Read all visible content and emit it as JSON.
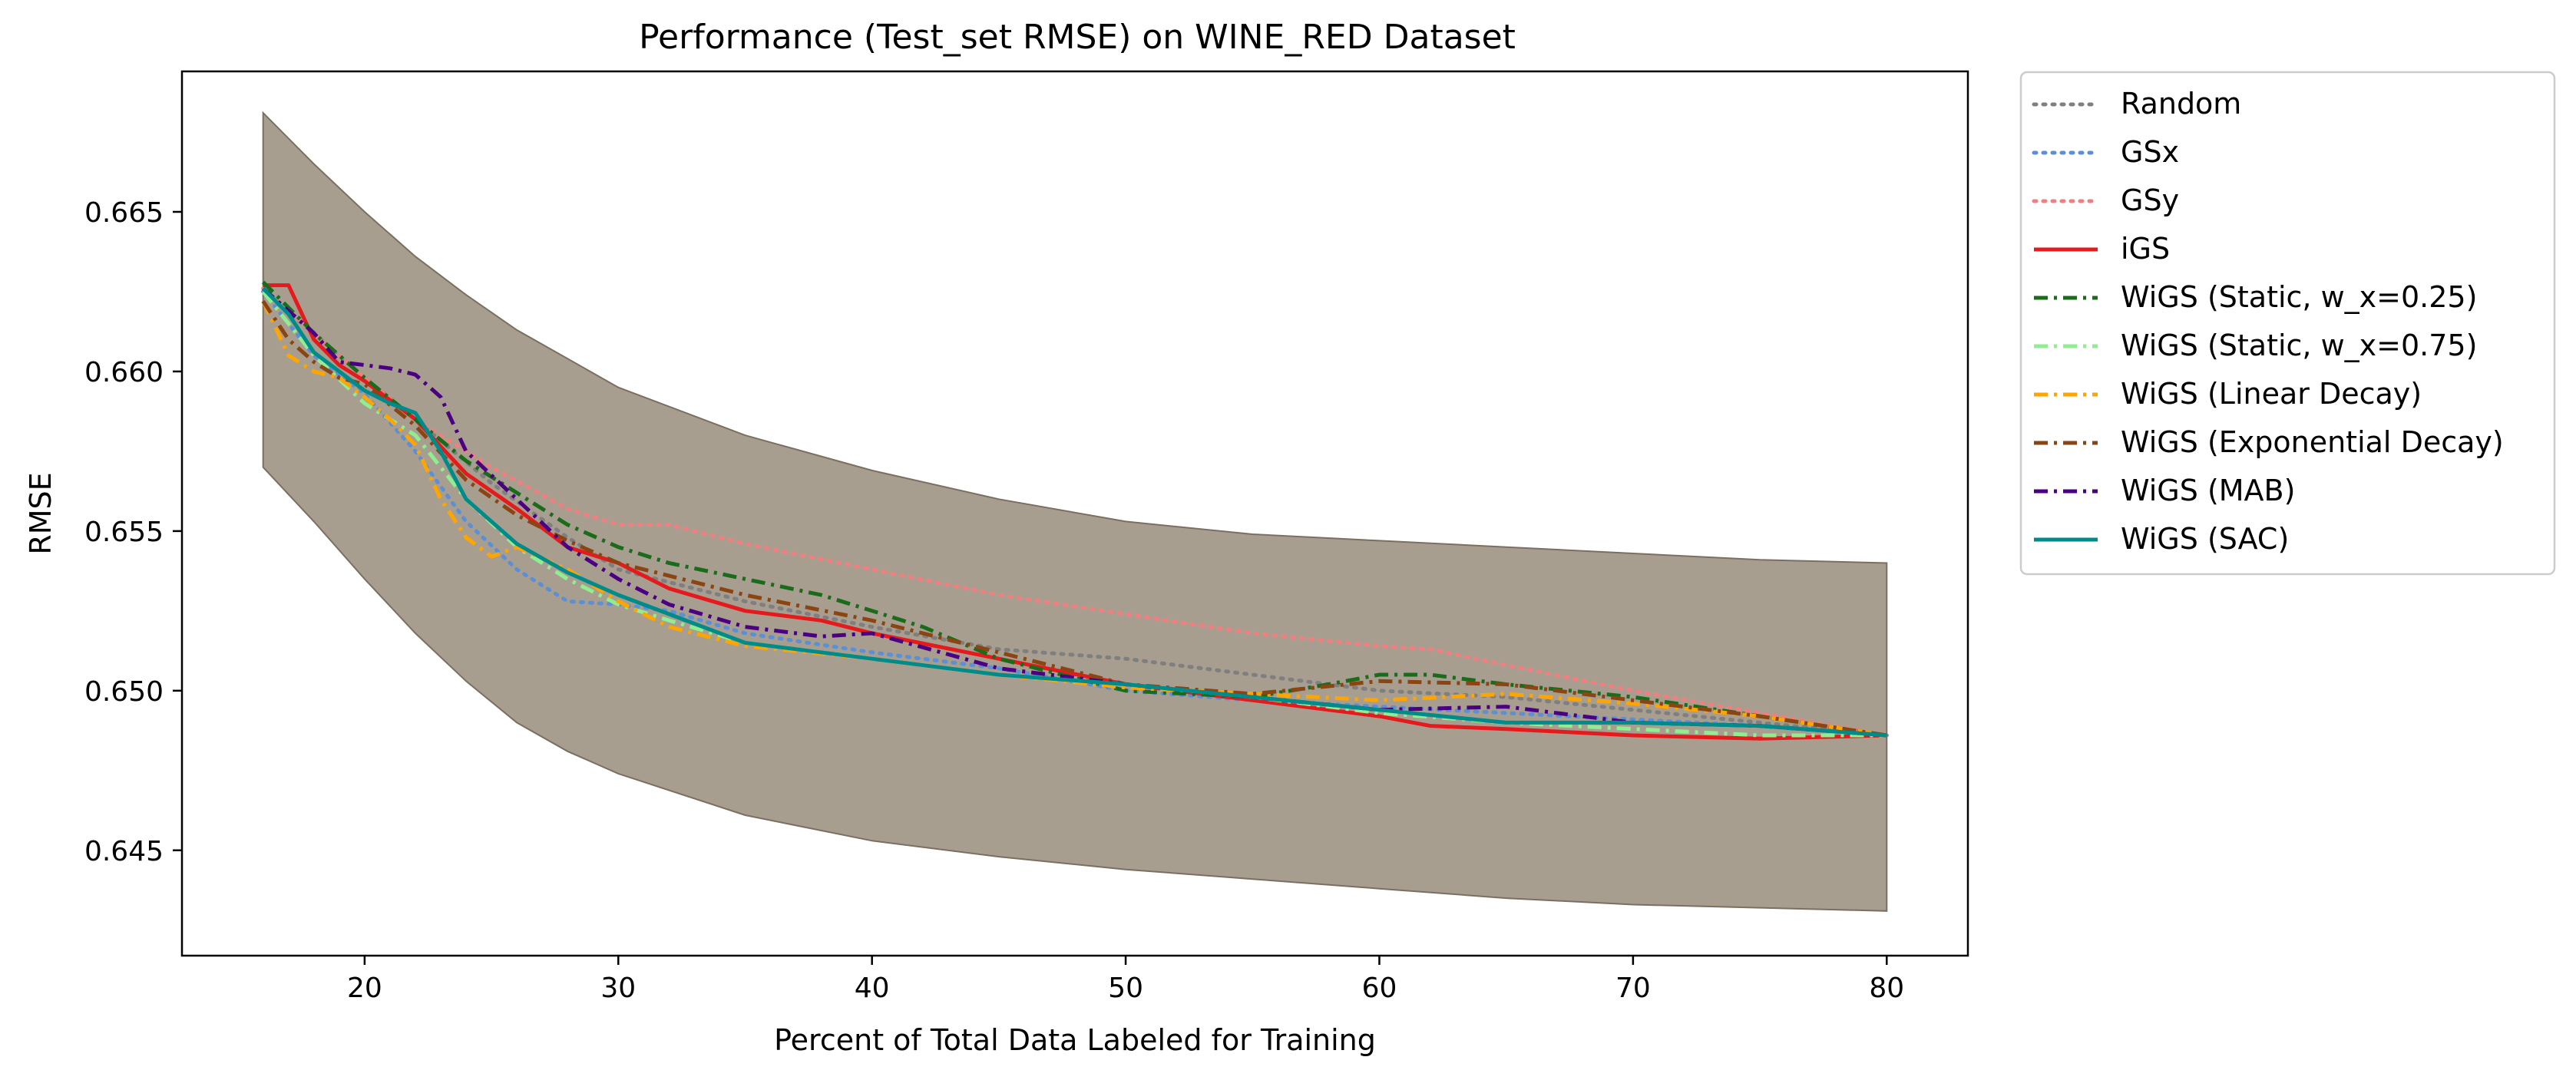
{
  "chart_data": {
    "type": "line",
    "title": "Performance (Test_set RMSE) on WINE_RED Dataset",
    "xlabel": "Percent of Total Data Labeled for Training",
    "ylabel": "RMSE",
    "xlim": [
      12.8,
      83.2
    ],
    "ylim": [
      0.6417,
      0.6694
    ],
    "xticks": [
      20,
      30,
      40,
      50,
      60,
      70,
      80
    ],
    "xtick_labels": [
      "20",
      "30",
      "40",
      "50",
      "60",
      "70",
      "80"
    ],
    "yticks": [
      0.645,
      0.65,
      0.655,
      0.66,
      0.665
    ],
    "ytick_labels": [
      "0.645",
      "0.650",
      "0.655",
      "0.660",
      "0.665"
    ],
    "grid": false,
    "legend_position": "outside-right",
    "confidence_band": {
      "color": "#9e9384",
      "x": [
        16,
        18,
        20,
        22,
        24,
        26,
        28,
        30,
        35,
        40,
        45,
        50,
        55,
        60,
        65,
        70,
        75,
        80
      ],
      "upper": [
        0.6681,
        0.6665,
        0.665,
        0.6636,
        0.6624,
        0.6613,
        0.6604,
        0.6595,
        0.658,
        0.6569,
        0.656,
        0.6553,
        0.6549,
        0.6547,
        0.6545,
        0.6543,
        0.6541,
        0.654
      ],
      "lower": [
        0.657,
        0.6553,
        0.6535,
        0.6518,
        0.6503,
        0.649,
        0.6481,
        0.6474,
        0.6461,
        0.6453,
        0.6448,
        0.6444,
        0.6441,
        0.6438,
        0.6435,
        0.6433,
        0.6432,
        0.6431
      ]
    },
    "series": [
      {
        "name": "Random",
        "color": "#7f7f7f",
        "dash": "dotted",
        "x": [
          16,
          18,
          20,
          22,
          25,
          28,
          30,
          35,
          40,
          45,
          50,
          55,
          60,
          65,
          70,
          75,
          80
        ],
        "y": [
          0.6625,
          0.6612,
          0.6598,
          0.6585,
          0.6565,
          0.6548,
          0.6538,
          0.6528,
          0.652,
          0.6513,
          0.651,
          0.6505,
          0.65,
          0.6498,
          0.6494,
          0.649,
          0.6486
        ]
      },
      {
        "name": "GSx",
        "color": "#5b8fd6",
        "dash": "dotted",
        "x": [
          16,
          18,
          20,
          22,
          24,
          26,
          28,
          30,
          32,
          35,
          40,
          45,
          50,
          55,
          60,
          65,
          70,
          75,
          80
        ],
        "y": [
          0.6625,
          0.6605,
          0.6593,
          0.6575,
          0.6553,
          0.6538,
          0.6528,
          0.6527,
          0.6525,
          0.6518,
          0.6512,
          0.6507,
          0.65,
          0.6497,
          0.6495,
          0.6493,
          0.6491,
          0.6489,
          0.6486
        ]
      },
      {
        "name": "GSy",
        "color": "#f08080",
        "dash": "dotted",
        "x": [
          16,
          18,
          20,
          22,
          25,
          28,
          30,
          32,
          35,
          40,
          45,
          50,
          55,
          60,
          62,
          65,
          70,
          75,
          80
        ],
        "y": [
          0.6626,
          0.6612,
          0.6598,
          0.6585,
          0.657,
          0.6557,
          0.6552,
          0.6552,
          0.6546,
          0.6538,
          0.653,
          0.6524,
          0.6518,
          0.6514,
          0.6513,
          0.6508,
          0.65,
          0.6493,
          0.6486
        ]
      },
      {
        "name": "iGS",
        "color": "#e41a1c",
        "dash": "solid",
        "x": [
          16,
          17,
          18,
          19,
          20,
          22,
          24,
          26,
          28,
          30,
          32,
          35,
          38,
          40,
          45,
          50,
          55,
          60,
          62,
          65,
          70,
          75,
          80
        ],
        "y": [
          0.6627,
          0.6627,
          0.661,
          0.6602,
          0.6597,
          0.6585,
          0.6568,
          0.6557,
          0.6545,
          0.654,
          0.6532,
          0.6525,
          0.6522,
          0.6518,
          0.651,
          0.6502,
          0.6497,
          0.6492,
          0.6489,
          0.6488,
          0.6486,
          0.6485,
          0.6486
        ]
      },
      {
        "name": "WiGS (Static, w_x=0.25)",
        "color": "#1a6b1a",
        "dash": "dashdot",
        "x": [
          16,
          18,
          20,
          22,
          24,
          26,
          28,
          30,
          32,
          35,
          38,
          40,
          42,
          45,
          50,
          55,
          58,
          60,
          62,
          65,
          70,
          75,
          80
        ],
        "y": [
          0.6628,
          0.6612,
          0.6598,
          0.6585,
          0.6572,
          0.6562,
          0.6552,
          0.6545,
          0.654,
          0.6535,
          0.653,
          0.6525,
          0.652,
          0.651,
          0.65,
          0.6498,
          0.6502,
          0.6505,
          0.6505,
          0.6502,
          0.6498,
          0.6492,
          0.6486
        ]
      },
      {
        "name": "WiGS (Static, w_x=0.75)",
        "color": "#90ee90",
        "dash": "dashdot",
        "x": [
          16,
          18,
          20,
          22,
          24,
          26,
          28,
          30,
          32,
          35,
          40,
          45,
          50,
          55,
          60,
          65,
          70,
          75,
          80
        ],
        "y": [
          0.6625,
          0.6605,
          0.659,
          0.658,
          0.656,
          0.6545,
          0.6535,
          0.6527,
          0.6522,
          0.6515,
          0.651,
          0.6505,
          0.6502,
          0.6498,
          0.6493,
          0.649,
          0.6488,
          0.6486,
          0.6486
        ]
      },
      {
        "name": "WiGS (Linear Decay)",
        "color": "#ffa500",
        "dash": "dashdot",
        "x": [
          16,
          17,
          18,
          19,
          20,
          21,
          22,
          23,
          24,
          25,
          26,
          28,
          30,
          32,
          35,
          40,
          45,
          50,
          55,
          60,
          65,
          70,
          75,
          80
        ],
        "y": [
          0.6622,
          0.6605,
          0.66,
          0.6598,
          0.6592,
          0.6585,
          0.6577,
          0.656,
          0.6548,
          0.6542,
          0.6545,
          0.6538,
          0.6528,
          0.652,
          0.6514,
          0.651,
          0.6505,
          0.6501,
          0.6499,
          0.6497,
          0.6499,
          0.6496,
          0.6492,
          0.6486
        ]
      },
      {
        "name": "WiGS (Exponential Decay)",
        "color": "#8b4513",
        "dash": "dashdot",
        "x": [
          16,
          17,
          18,
          19,
          20,
          22,
          24,
          26,
          28,
          30,
          32,
          35,
          40,
          45,
          50,
          55,
          60,
          65,
          70,
          75,
          80
        ],
        "y": [
          0.6622,
          0.661,
          0.6603,
          0.6598,
          0.6596,
          0.6583,
          0.6566,
          0.6555,
          0.6547,
          0.654,
          0.6536,
          0.653,
          0.6522,
          0.6512,
          0.6502,
          0.6499,
          0.6503,
          0.6502,
          0.6497,
          0.6492,
          0.6486
        ]
      },
      {
        "name": "WiGS (MAB)",
        "color": "#4b0082",
        "dash": "dashdot",
        "x": [
          16,
          18,
          19,
          20,
          21,
          22,
          23,
          24,
          26,
          28,
          30,
          32,
          35,
          38,
          40,
          45,
          50,
          55,
          60,
          65,
          70,
          75,
          80
        ],
        "y": [
          0.6626,
          0.6612,
          0.6603,
          0.6602,
          0.6601,
          0.6599,
          0.6592,
          0.6575,
          0.656,
          0.6545,
          0.6535,
          0.6527,
          0.652,
          0.6517,
          0.6518,
          0.6507,
          0.6502,
          0.6498,
          0.6494,
          0.6495,
          0.649,
          0.6489,
          0.6486
        ]
      },
      {
        "name": "WiGS (SAC)",
        "color": "#008b8b",
        "dash": "solid",
        "x": [
          16,
          17,
          18,
          19,
          20,
          21,
          22,
          23,
          24,
          26,
          28,
          30,
          32,
          35,
          40,
          45,
          50,
          55,
          60,
          65,
          70,
          75,
          80
        ],
        "y": [
          0.6626,
          0.6618,
          0.6606,
          0.66,
          0.6594,
          0.659,
          0.6587,
          0.6575,
          0.656,
          0.6546,
          0.6537,
          0.653,
          0.6524,
          0.6515,
          0.651,
          0.6505,
          0.6502,
          0.6498,
          0.6494,
          0.649,
          0.649,
          0.6489,
          0.6486
        ]
      }
    ]
  }
}
